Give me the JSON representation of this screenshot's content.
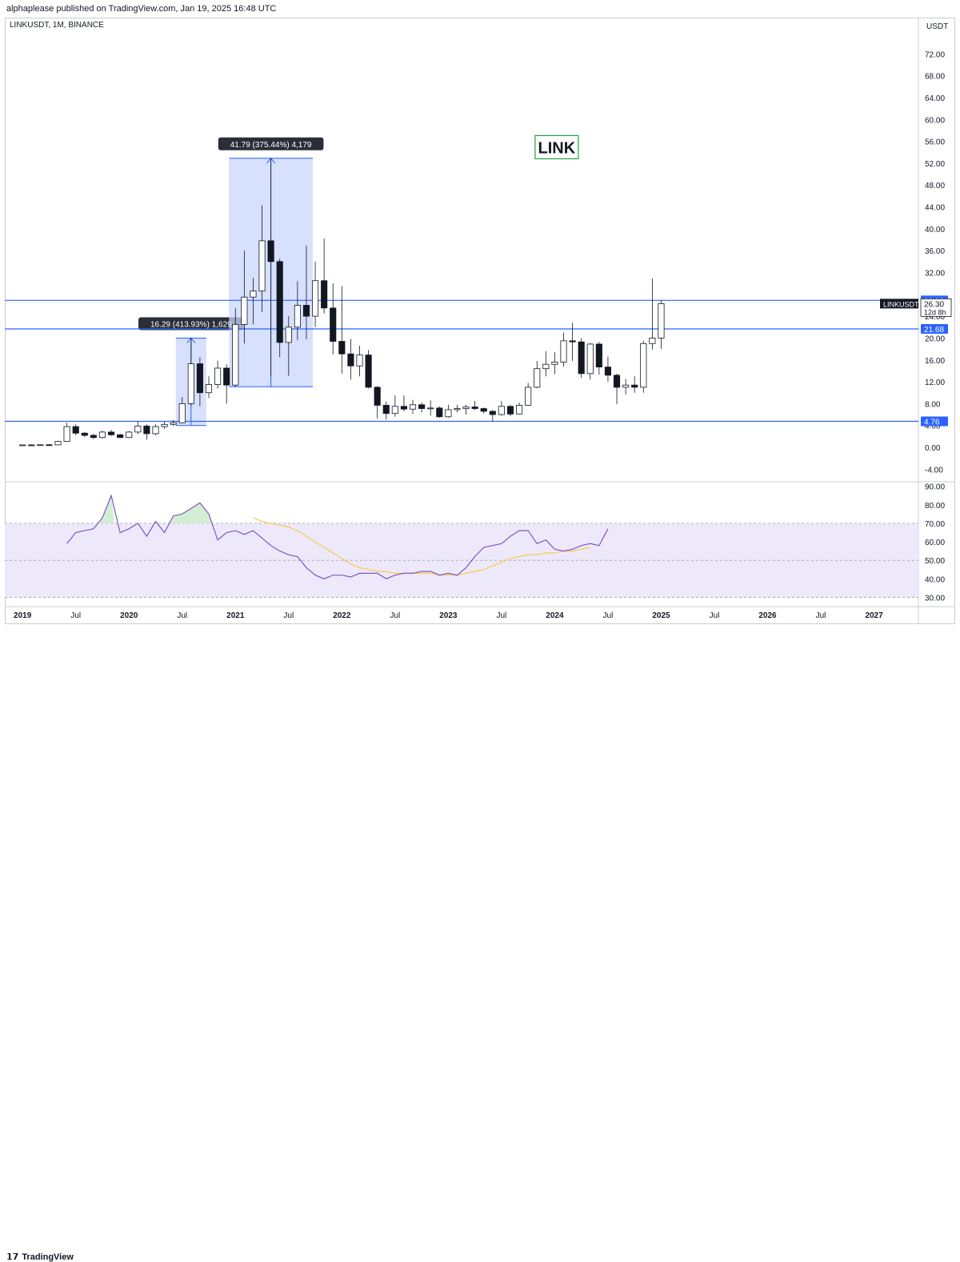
{
  "header": {
    "published": "alphaplease published on TradingView.com, Jan 19, 2025 16:48 UTC"
  },
  "footer": {
    "brand": "TradingView",
    "logo": "tradingview-logo-icon"
  },
  "colors": {
    "up_fill": "#ffffff",
    "down_fill": "#131722",
    "line_blue": "#2962ff",
    "rsi": "#7e57c2",
    "rsi_ma": "#f7c948",
    "measure": "#c9d6fb",
    "label_green": "#21a148"
  },
  "chart_data": [
    {
      "type": "candlestick",
      "symbol": "LINKUSDT, 1M, BINANCE",
      "currency": "USDT",
      "title": "LINK",
      "ylim": [
        -6,
        76
      ],
      "y_ticks": [
        72.0,
        68.0,
        64.0,
        60.0,
        56.0,
        52.0,
        48.0,
        44.0,
        40.0,
        36.0,
        32.0,
        24.0,
        20.0,
        16.0,
        12.0,
        8.0,
        4.0,
        0.0,
        -4.0
      ],
      "y_tick_labels": [
        "72.00",
        "68.00",
        "64.00",
        "60.00",
        "56.00",
        "52.00",
        "48.00",
        "44.00",
        "40.00",
        "36.00",
        "32.00",
        "24.00",
        "20.00",
        "16.00",
        "12.00",
        "8.00",
        "4.00",
        "0.00",
        "-4.00"
      ],
      "x_range_months": [
        "2018-11",
        "2027-06"
      ],
      "x_ticks": [
        {
          "m": "2019-01",
          "label": "2019",
          "bold": true
        },
        {
          "m": "2019-07",
          "label": "Jul"
        },
        {
          "m": "2020-01",
          "label": "2020",
          "bold": true
        },
        {
          "m": "2020-07",
          "label": "Jul"
        },
        {
          "m": "2021-01",
          "label": "2021",
          "bold": true
        },
        {
          "m": "2021-07",
          "label": "Jul"
        },
        {
          "m": "2022-01",
          "label": "2022",
          "bold": true
        },
        {
          "m": "2022-07",
          "label": "Jul"
        },
        {
          "m": "2023-01",
          "label": "2023",
          "bold": true
        },
        {
          "m": "2023-07",
          "label": "Jul"
        },
        {
          "m": "2024-01",
          "label": "2024",
          "bold": true
        },
        {
          "m": "2024-07",
          "label": "Jul"
        },
        {
          "m": "2025-01",
          "label": "2025",
          "bold": true
        },
        {
          "m": "2025-07",
          "label": "Jul"
        },
        {
          "m": "2026-01",
          "label": "2026",
          "bold": true
        },
        {
          "m": "2026-07",
          "label": "Jul"
        },
        {
          "m": "2027-01",
          "label": "2027",
          "bold": true
        }
      ],
      "candles": [
        {
          "m": "2019-01",
          "o": 0.4,
          "h": 0.5,
          "l": 0.32,
          "c": 0.45
        },
        {
          "m": "2019-02",
          "o": 0.45,
          "h": 0.55,
          "l": 0.38,
          "c": 0.42
        },
        {
          "m": "2019-03",
          "o": 0.42,
          "h": 0.55,
          "l": 0.4,
          "c": 0.48
        },
        {
          "m": "2019-04",
          "o": 0.48,
          "h": 0.6,
          "l": 0.4,
          "c": 0.45
        },
        {
          "m": "2019-05",
          "o": 0.45,
          "h": 1.2,
          "l": 0.4,
          "c": 1.1
        },
        {
          "m": "2019-06",
          "o": 1.1,
          "h": 4.5,
          "l": 1.0,
          "c": 3.8
        },
        {
          "m": "2019-07",
          "o": 3.8,
          "h": 4.2,
          "l": 2.2,
          "c": 2.6
        },
        {
          "m": "2019-08",
          "o": 2.6,
          "h": 2.8,
          "l": 1.9,
          "c": 2.2
        },
        {
          "m": "2019-09",
          "o": 2.2,
          "h": 2.5,
          "l": 1.5,
          "c": 1.8
        },
        {
          "m": "2019-10",
          "o": 1.8,
          "h": 3.1,
          "l": 1.6,
          "c": 2.8
        },
        {
          "m": "2019-11",
          "o": 2.8,
          "h": 3.2,
          "l": 2.1,
          "c": 2.3
        },
        {
          "m": "2019-12",
          "o": 2.3,
          "h": 2.5,
          "l": 1.7,
          "c": 1.8
        },
        {
          "m": "2020-01",
          "o": 1.8,
          "h": 3.0,
          "l": 1.7,
          "c": 2.8
        },
        {
          "m": "2020-02",
          "o": 2.8,
          "h": 4.8,
          "l": 2.4,
          "c": 3.9
        },
        {
          "m": "2020-03",
          "o": 3.9,
          "h": 4.2,
          "l": 1.4,
          "c": 2.5
        },
        {
          "m": "2020-04",
          "o": 2.5,
          "h": 4.2,
          "l": 2.2,
          "c": 3.8
        },
        {
          "m": "2020-05",
          "o": 3.8,
          "h": 4.7,
          "l": 3.4,
          "c": 4.2
        },
        {
          "m": "2020-06",
          "o": 4.2,
          "h": 5.0,
          "l": 3.9,
          "c": 4.5
        },
        {
          "m": "2020-07",
          "o": 4.5,
          "h": 9.2,
          "l": 4.4,
          "c": 8.0
        },
        {
          "m": "2020-08",
          "o": 8.0,
          "h": 20.0,
          "l": 7.6,
          "c": 15.3
        },
        {
          "m": "2020-09",
          "o": 15.3,
          "h": 16.5,
          "l": 7.5,
          "c": 10.0
        },
        {
          "m": "2020-10",
          "o": 10.0,
          "h": 13.0,
          "l": 9.0,
          "c": 11.5
        },
        {
          "m": "2020-11",
          "o": 11.5,
          "h": 15.9,
          "l": 10.8,
          "c": 14.5
        },
        {
          "m": "2020-12",
          "o": 14.5,
          "h": 15.2,
          "l": 8.0,
          "c": 11.4
        },
        {
          "m": "2021-01",
          "o": 11.4,
          "h": 25.5,
          "l": 11.0,
          "c": 22.5
        },
        {
          "m": "2021-02",
          "o": 22.5,
          "h": 36.0,
          "l": 19.0,
          "c": 27.5
        },
        {
          "m": "2021-03",
          "o": 27.5,
          "h": 31.0,
          "l": 22.5,
          "c": 28.6
        },
        {
          "m": "2021-04",
          "o": 28.6,
          "h": 44.3,
          "l": 24.8,
          "c": 37.8
        },
        {
          "m": "2021-05",
          "o": 37.8,
          "h": 52.9,
          "l": 13.0,
          "c": 34.0
        },
        {
          "m": "2021-06",
          "o": 34.0,
          "h": 34.5,
          "l": 16.5,
          "c": 19.2
        },
        {
          "m": "2021-07",
          "o": 19.2,
          "h": 24.0,
          "l": 13.1,
          "c": 22.0
        },
        {
          "m": "2021-08",
          "o": 22.0,
          "h": 30.4,
          "l": 19.6,
          "c": 26.0
        },
        {
          "m": "2021-09",
          "o": 26.0,
          "h": 36.9,
          "l": 19.8,
          "c": 24.0
        },
        {
          "m": "2021-10",
          "o": 24.0,
          "h": 34.0,
          "l": 22.0,
          "c": 30.5
        },
        {
          "m": "2021-11",
          "o": 30.5,
          "h": 38.2,
          "l": 24.5,
          "c": 25.5
        },
        {
          "m": "2021-12",
          "o": 25.5,
          "h": 30.0,
          "l": 17.0,
          "c": 19.4
        },
        {
          "m": "2022-01",
          "o": 19.4,
          "h": 29.5,
          "l": 13.5,
          "c": 17.1
        },
        {
          "m": "2022-02",
          "o": 17.1,
          "h": 19.8,
          "l": 12.4,
          "c": 14.9
        },
        {
          "m": "2022-03",
          "o": 14.9,
          "h": 18.6,
          "l": 13.0,
          "c": 16.9
        },
        {
          "m": "2022-04",
          "o": 16.9,
          "h": 17.8,
          "l": 10.8,
          "c": 11.0
        },
        {
          "m": "2022-05",
          "o": 11.0,
          "h": 11.2,
          "l": 5.3,
          "c": 7.7
        },
        {
          "m": "2022-06",
          "o": 7.7,
          "h": 8.4,
          "l": 5.1,
          "c": 6.2
        },
        {
          "m": "2022-07",
          "o": 6.2,
          "h": 9.5,
          "l": 5.6,
          "c": 7.5
        },
        {
          "m": "2022-08",
          "o": 7.5,
          "h": 9.5,
          "l": 6.6,
          "c": 7.0
        },
        {
          "m": "2022-09",
          "o": 7.0,
          "h": 8.7,
          "l": 6.1,
          "c": 7.8
        },
        {
          "m": "2022-10",
          "o": 7.8,
          "h": 8.2,
          "l": 6.4,
          "c": 7.1
        },
        {
          "m": "2022-11",
          "o": 7.1,
          "h": 8.6,
          "l": 5.8,
          "c": 7.2
        },
        {
          "m": "2022-12",
          "o": 7.2,
          "h": 7.5,
          "l": 5.4,
          "c": 5.6
        },
        {
          "m": "2023-01",
          "o": 5.6,
          "h": 7.8,
          "l": 5.4,
          "c": 6.9
        },
        {
          "m": "2023-02",
          "o": 6.9,
          "h": 7.8,
          "l": 6.4,
          "c": 7.1
        },
        {
          "m": "2023-03",
          "o": 7.1,
          "h": 7.8,
          "l": 6.0,
          "c": 7.4
        },
        {
          "m": "2023-04",
          "o": 7.4,
          "h": 8.5,
          "l": 6.8,
          "c": 7.1
        },
        {
          "m": "2023-05",
          "o": 7.1,
          "h": 7.3,
          "l": 6.2,
          "c": 6.6
        },
        {
          "m": "2023-06",
          "o": 6.6,
          "h": 6.8,
          "l": 4.8,
          "c": 6.0
        },
        {
          "m": "2023-07",
          "o": 6.0,
          "h": 8.5,
          "l": 5.8,
          "c": 7.5
        },
        {
          "m": "2023-08",
          "o": 7.5,
          "h": 7.8,
          "l": 5.7,
          "c": 6.1
        },
        {
          "m": "2023-09",
          "o": 6.1,
          "h": 8.2,
          "l": 6.0,
          "c": 7.7
        },
        {
          "m": "2023-10",
          "o": 7.7,
          "h": 11.8,
          "l": 7.6,
          "c": 11.0
        },
        {
          "m": "2023-11",
          "o": 11.0,
          "h": 15.8,
          "l": 10.8,
          "c": 14.4
        },
        {
          "m": "2023-12",
          "o": 14.4,
          "h": 17.6,
          "l": 13.0,
          "c": 15.2
        },
        {
          "m": "2024-01",
          "o": 15.2,
          "h": 17.4,
          "l": 13.4,
          "c": 15.6
        },
        {
          "m": "2024-02",
          "o": 15.6,
          "h": 21.0,
          "l": 14.8,
          "c": 19.5
        },
        {
          "m": "2024-03",
          "o": 19.5,
          "h": 22.8,
          "l": 15.8,
          "c": 19.3
        },
        {
          "m": "2024-04",
          "o": 19.3,
          "h": 20.0,
          "l": 12.7,
          "c": 13.5
        },
        {
          "m": "2024-05",
          "o": 13.5,
          "h": 19.1,
          "l": 12.4,
          "c": 18.9
        },
        {
          "m": "2024-06",
          "o": 18.9,
          "h": 19.3,
          "l": 13.3,
          "c": 14.7
        },
        {
          "m": "2024-07",
          "o": 14.7,
          "h": 16.6,
          "l": 12.0,
          "c": 13.2
        },
        {
          "m": "2024-08",
          "o": 13.2,
          "h": 13.5,
          "l": 7.9,
          "c": 11.0
        },
        {
          "m": "2024-09",
          "o": 11.0,
          "h": 12.5,
          "l": 9.7,
          "c": 11.4
        },
        {
          "m": "2024-10",
          "o": 11.4,
          "h": 13.0,
          "l": 10.0,
          "c": 11.0
        },
        {
          "m": "2024-11",
          "o": 11.0,
          "h": 19.5,
          "l": 10.0,
          "c": 19.0
        },
        {
          "m": "2024-12",
          "o": 19.0,
          "h": 30.9,
          "l": 17.9,
          "c": 20.0
        },
        {
          "m": "2025-01",
          "o": 20.0,
          "h": 26.9,
          "l": 18.0,
          "c": 26.3
        }
      ],
      "hlines": [
        {
          "value": 26.9,
          "label": "26.90"
        },
        {
          "value": 21.68,
          "label": "21.68"
        },
        {
          "value": 4.76,
          "label": "4.76"
        }
      ],
      "last_price": {
        "name": "LINKUSDT",
        "value": "26.30",
        "countdown": "12d 8h"
      },
      "measures": [
        {
          "label": "16.29 (413.93%) 1,629",
          "m_start": "2020-07",
          "m_end": "2020-09",
          "from": 4.0,
          "to": 20.0
        },
        {
          "label": "41.79 (375.44%) 4,179",
          "m_start": "2021-01",
          "m_end": "2021-09",
          "from": 11.1,
          "to": 52.9
        }
      ]
    },
    {
      "type": "line",
      "name": "RSI",
      "ylim": [
        25,
        92
      ],
      "y_ticks": [
        90.0,
        80.0,
        70.0,
        60.0,
        50.0,
        40.0,
        30.0
      ],
      "y_tick_labels": [
        "90.00",
        "80.00",
        "70.00",
        "60.00",
        "50.00",
        "40.00",
        "30.00"
      ],
      "band": [
        30,
        70
      ],
      "midline": 50,
      "series": [
        {
          "values_start": "2019-06",
          "values": [
            59,
            65,
            66,
            67,
            73,
            85,
            65,
            67,
            70,
            63,
            71,
            65,
            74,
            75,
            78,
            81,
            75,
            61,
            65,
            66,
            64,
            66,
            62,
            58,
            55,
            53,
            52,
            46,
            42,
            40,
            42,
            42,
            41,
            43,
            43,
            43,
            40,
            42,
            43,
            43,
            44,
            44,
            42,
            43,
            42,
            46,
            52,
            57,
            58,
            59,
            63,
            66,
            66,
            59,
            61,
            56,
            55,
            56,
            58,
            59,
            58,
            67
          ]
        },
        {
          "values_start": "2021-03",
          "values": [
            73,
            71,
            70,
            69,
            68,
            66,
            63,
            60,
            57,
            54,
            51,
            48,
            46,
            45,
            44,
            44,
            43,
            43,
            43,
            43,
            43,
            42,
            42,
            42,
            43,
            44,
            45,
            47,
            49,
            51,
            52,
            53,
            53,
            54,
            54,
            55,
            55,
            56,
            57
          ]
        }
      ]
    }
  ]
}
